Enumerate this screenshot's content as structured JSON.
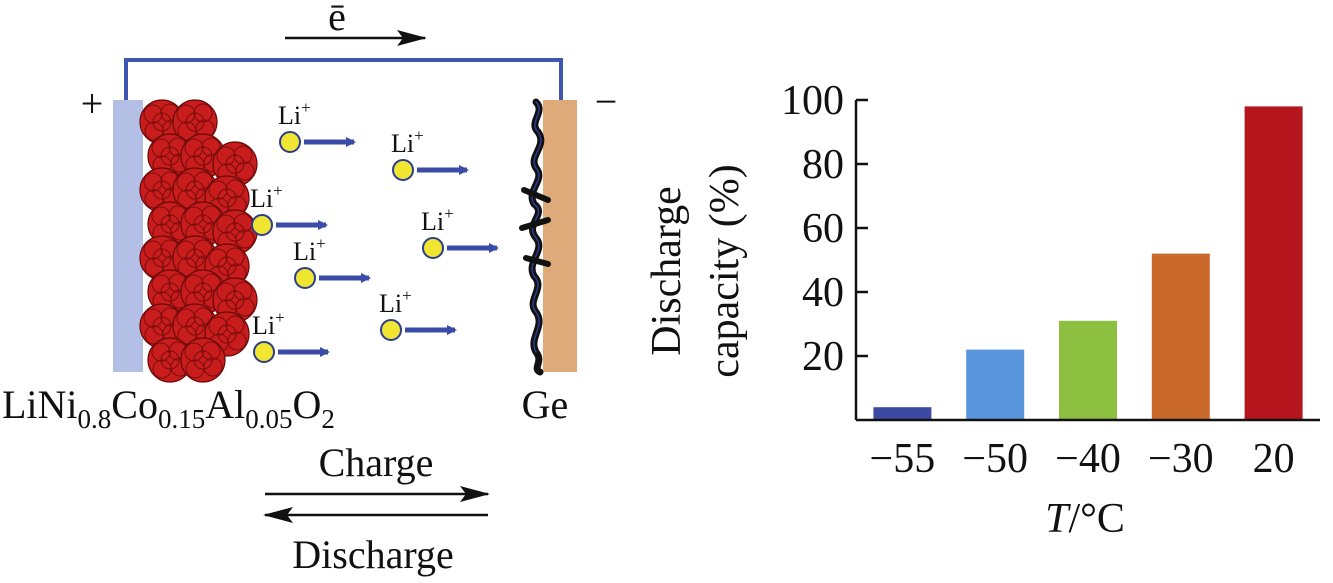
{
  "diagram": {
    "electron_label": "ē",
    "positive_sign": "+",
    "negative_sign": "−",
    "ion_label": "Li",
    "ion_charge": "+",
    "cathode_label": {
      "base": "LiNi",
      "sub1": "0.8",
      "co": "Co",
      "sub2": "0.15",
      "al": "Al",
      "sub3": "0.05",
      "o": "O",
      "sub4": "2"
    },
    "anode_label": "Ge",
    "charge_label": "Charge",
    "discharge_label": "Discharge",
    "colors": {
      "wire": "#3d56b0",
      "current_collector": "#b4bfe6",
      "cathode_particles": "#c91c1c",
      "anode": "#deaa7a",
      "ion": "#f0e632",
      "ion_arrow": "#3a4ba8"
    }
  },
  "chart_data": {
    "type": "bar",
    "categories": [
      "−55",
      "−50",
      "−40",
      "−30",
      "20"
    ],
    "values": [
      4,
      22,
      31,
      52,
      98
    ],
    "colors": [
      "#3d4aa3",
      "#5a96dc",
      "#8cbf3f",
      "#c96a2c",
      "#b5161d"
    ],
    "ylim": [
      0,
      100
    ],
    "yticks": [
      "20",
      "40",
      "60",
      "80",
      "100"
    ],
    "ylabel_line1": "Discharge",
    "ylabel_line2": "capacity (%)",
    "xlabel_italic": "T",
    "xlabel_rest": "/°C"
  }
}
